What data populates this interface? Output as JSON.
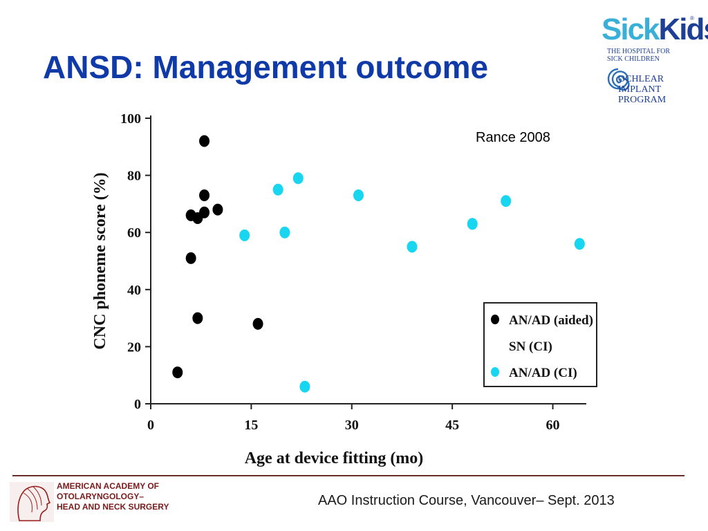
{
  "slide": {
    "title": "ANSD: Management outcome",
    "citation": "Rance 2008",
    "footer": "AAO Instruction Course, Vancouver– Sept. 2013"
  },
  "logos": {
    "sickkids": {
      "word_sick": "Sick",
      "word_kids": "Kids",
      "registered": "®",
      "hospital_line1": "THE HOSPITAL FOR",
      "hospital_line2": "SICK CHILDREN",
      "program_line1": "OCHLEAR",
      "program_line2": "IMPLANT",
      "program_line3": "PROGRAM"
    },
    "aao": {
      "line1": "AMERICAN ACADEMY OF",
      "line2": "OTOLARYNGOLOGY–",
      "line3": "HEAD AND NECK SURGERY"
    }
  },
  "colors": {
    "title": "#0f3aa8",
    "aided": "#000000",
    "ci": "#19d6f0",
    "footer_rule": "#6b2c2c"
  },
  "chart_data": {
    "type": "scatter",
    "xlabel": "Age at device fitting (mo)",
    "ylabel": "CNC phoneme score (%)",
    "xlim": [
      0,
      65
    ],
    "ylim": [
      0,
      100
    ],
    "xticks": [
      0,
      15,
      30,
      45,
      60
    ],
    "yticks": [
      0,
      20,
      40,
      60,
      80,
      100
    ],
    "grid": false,
    "legend_position": "bottom-right",
    "legend": [
      "AN/AD (aided)",
      "SN (CI)",
      "AN/AD (CI)"
    ],
    "series": [
      {
        "name": "AN/AD (aided)",
        "color": "#000000",
        "points": [
          [
            8,
            92
          ],
          [
            8,
            73
          ],
          [
            8,
            67
          ],
          [
            10,
            68
          ],
          [
            6,
            66
          ],
          [
            7,
            65
          ],
          [
            6,
            51
          ],
          [
            7,
            30
          ],
          [
            16,
            28
          ],
          [
            4,
            11
          ]
        ]
      },
      {
        "name": "SN (CI)",
        "color": "#ffffff",
        "points": []
      },
      {
        "name": "AN/AD (CI)",
        "color": "#19d6f0",
        "points": [
          [
            22,
            79
          ],
          [
            19,
            75
          ],
          [
            31,
            73
          ],
          [
            53,
            71
          ],
          [
            48,
            63
          ],
          [
            20,
            60
          ],
          [
            14,
            59
          ],
          [
            64,
            56
          ],
          [
            39,
            55
          ],
          [
            23,
            6
          ]
        ]
      }
    ]
  }
}
